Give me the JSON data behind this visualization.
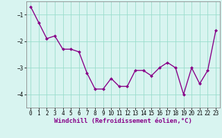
{
  "x": [
    0,
    1,
    2,
    3,
    4,
    5,
    6,
    7,
    8,
    9,
    10,
    11,
    12,
    13,
    14,
    15,
    16,
    17,
    18,
    19,
    20,
    21,
    22,
    23
  ],
  "y": [
    -0.7,
    -1.3,
    -1.9,
    -1.8,
    -2.3,
    -2.3,
    -2.4,
    -3.2,
    -3.8,
    -3.8,
    -3.4,
    -3.7,
    -3.7,
    -3.1,
    -3.1,
    -3.3,
    -3.0,
    -2.8,
    -3.0,
    -4.0,
    -3.0,
    -3.6,
    -3.1,
    -1.6
  ],
  "line_color": "#880088",
  "marker": "D",
  "marker_size": 2.0,
  "xlabel": "Windchill (Refroidissement éolien,°C)",
  "xlabel_fontsize": 6.5,
  "ylim": [
    -4.5,
    -0.5
  ],
  "xlim": [
    -0.5,
    23.5
  ],
  "yticks": [
    -4,
    -3,
    -2,
    -1
  ],
  "xticks": [
    0,
    1,
    2,
    3,
    4,
    5,
    6,
    7,
    8,
    9,
    10,
    11,
    12,
    13,
    14,
    15,
    16,
    17,
    18,
    19,
    20,
    21,
    22,
    23
  ],
  "grid_color": "#99ddcc",
  "bg_color": "#d8f4f0",
  "tick_fontsize": 5.5,
  "line_width": 1.0,
  "spine_color": "#888888"
}
